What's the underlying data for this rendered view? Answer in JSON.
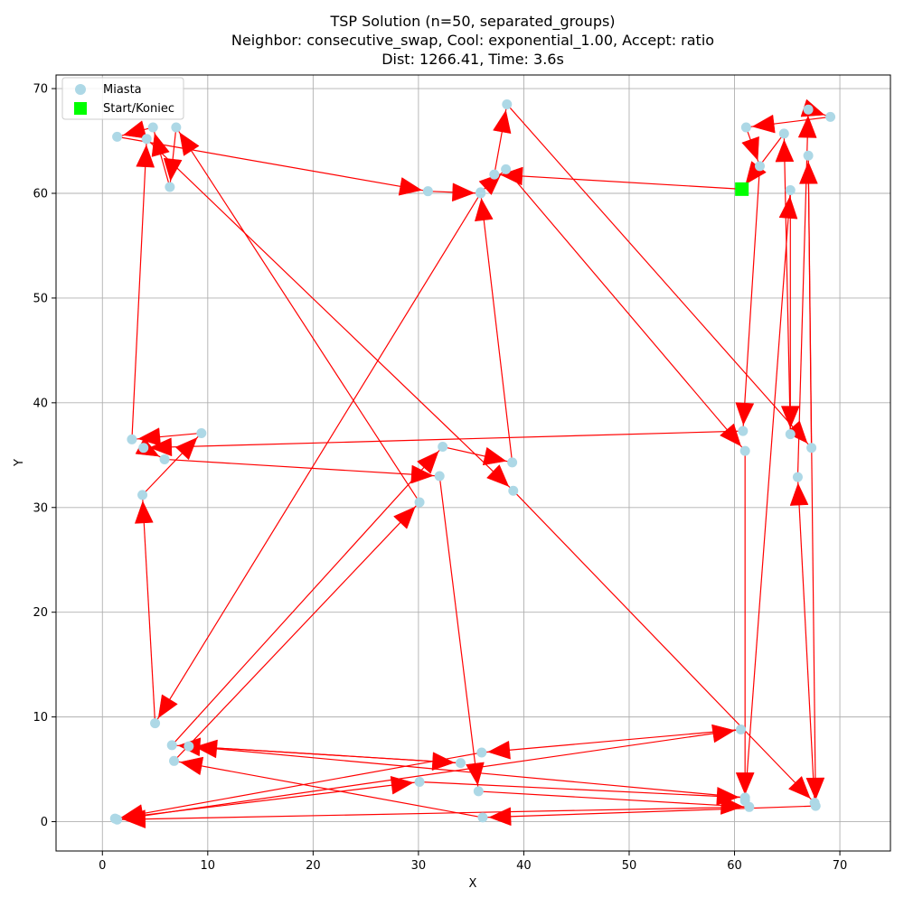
{
  "chart_data": {
    "type": "scatter",
    "title_lines": [
      "TSP Solution (n=50, separated_groups)",
      "Neighbor: consecutive_swap, Cool: exponential_1.00, Accept: ratio",
      "Dist: 1266.41, Time: 3.6s"
    ],
    "xlabel": "X",
    "ylabel": "Y",
    "xlim": [
      -4.4,
      74.8
    ],
    "ylim": [
      -2.8,
      71.3
    ],
    "xticks": [
      0,
      10,
      20,
      30,
      40,
      50,
      60,
      70
    ],
    "yticks": [
      0,
      10,
      20,
      30,
      40,
      50,
      60,
      70
    ],
    "grid": true,
    "legend": {
      "placement": "top-left",
      "entries": [
        {
          "label": "Miasta",
          "marker": "circle",
          "color": "#add8e6"
        },
        {
          "label": "Start/Koniec",
          "marker": "square",
          "color": "#00ff00"
        }
      ]
    },
    "colors": {
      "city": "#add8e6",
      "route": "#ff0000",
      "start": "#00ff00"
    },
    "start": [
      60.7,
      60.4
    ],
    "route": [
      [
        60.7,
        60.4
      ],
      [
        37.2,
        61.8
      ],
      [
        38.4,
        68.5
      ],
      [
        67.3,
        35.7
      ],
      [
        67.0,
        63.6
      ],
      [
        67.7,
        1.5
      ],
      [
        36.1,
        0.4
      ],
      [
        6.8,
        5.8
      ],
      [
        30.1,
        30.5
      ],
      [
        7.0,
        66.3
      ],
      [
        6.4,
        60.6
      ],
      [
        4.8,
        66.3
      ],
      [
        1.4,
        65.4
      ],
      [
        30.9,
        60.2
      ],
      [
        35.9,
        60.0
      ],
      [
        5.0,
        9.4
      ],
      [
        3.8,
        31.2
      ],
      [
        9.4,
        37.1
      ],
      [
        2.8,
        36.5
      ],
      [
        4.2,
        65.2
      ],
      [
        39.0,
        31.6
      ],
      [
        67.6,
        1.8
      ],
      [
        66.0,
        32.9
      ],
      [
        67.0,
        68.0
      ],
      [
        69.1,
        67.3
      ],
      [
        61.1,
        66.3
      ],
      [
        62.4,
        62.6
      ],
      [
        60.8,
        37.3
      ],
      [
        3.9,
        35.7
      ],
      [
        5.9,
        34.6
      ],
      [
        32.0,
        33.0
      ],
      [
        35.7,
        2.9
      ],
      [
        61.4,
        1.4
      ],
      [
        1.4,
        0.2
      ],
      [
        60.6,
        8.8
      ],
      [
        36.0,
        6.6
      ],
      [
        1.2,
        0.3
      ],
      [
        30.1,
        3.8
      ],
      [
        61.0,
        2.3
      ],
      [
        8.2,
        7.2
      ],
      [
        34.0,
        5.6
      ],
      [
        6.6,
        7.3
      ],
      [
        32.3,
        35.8
      ],
      [
        38.9,
        34.3
      ],
      [
        35.9,
        60.1
      ],
      [
        38.3,
        62.3
      ],
      [
        61.0,
        35.4
      ],
      [
        61.0,
        2.0
      ],
      [
        65.3,
        60.3
      ],
      [
        65.3,
        37.0
      ],
      [
        64.7,
        65.7
      ],
      [
        60.7,
        60.4
      ]
    ]
  }
}
